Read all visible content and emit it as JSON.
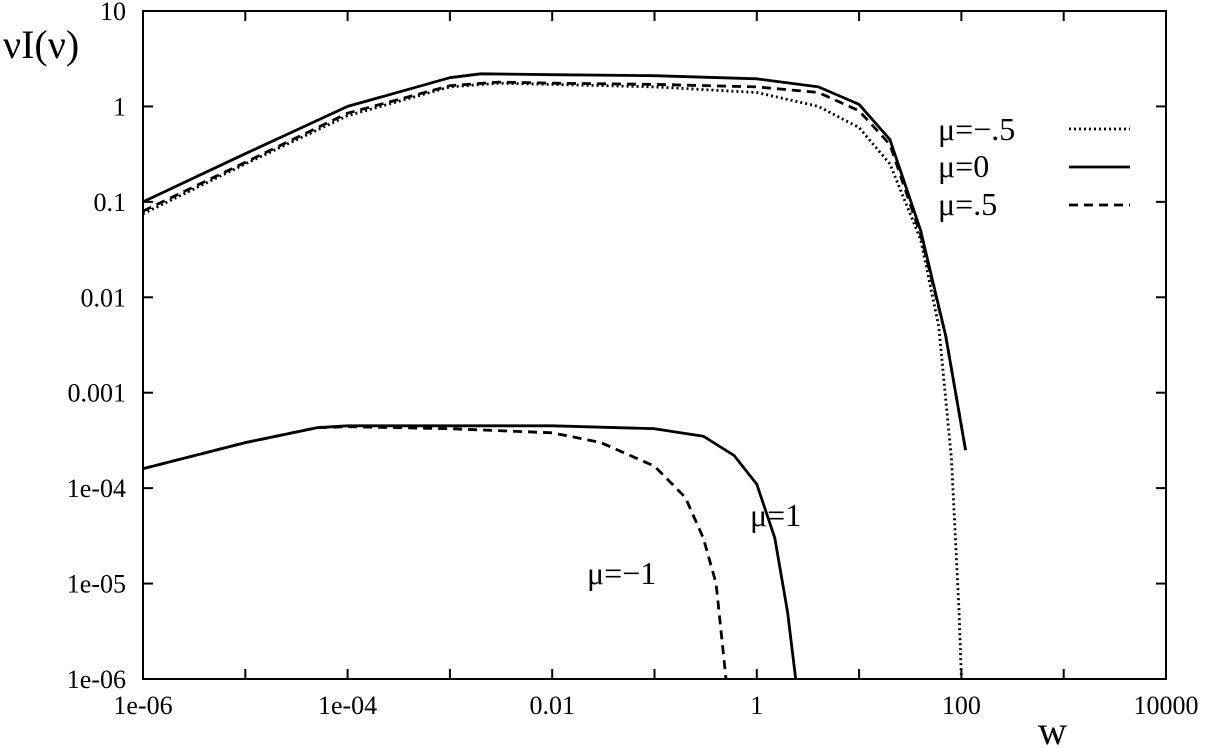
{
  "chart_data": {
    "type": "line",
    "title": "",
    "xlabel": "w",
    "ylabel": "νI(ν)",
    "x_scale": "log",
    "y_scale": "log",
    "xlim": [
      1e-06,
      10000
    ],
    "ylim": [
      1e-06,
      10
    ],
    "grid": false,
    "legend_position": "right",
    "x_tick_labels": [
      "1e-06",
      "1e-04",
      "0.01",
      "1",
      "100",
      "10000"
    ],
    "y_tick_labels": [
      "1e-06",
      "1e-05",
      "1e-04",
      "0.001",
      "0.01",
      "0.1",
      "1",
      "10"
    ],
    "series": [
      {
        "name": "μ=−.5",
        "style": "dotted",
        "points": [
          [
            1e-06,
            0.075
          ],
          [
            1e-05,
            0.25
          ],
          [
            0.0001,
            0.8
          ],
          [
            0.001,
            1.6
          ],
          [
            0.003,
            1.75
          ],
          [
            0.01,
            1.7
          ],
          [
            0.1,
            1.6
          ],
          [
            1,
            1.4
          ],
          [
            4,
            1.0
          ],
          [
            10,
            0.6
          ],
          [
            20,
            0.25
          ],
          [
            40,
            0.04
          ],
          [
            60,
            0.005
          ],
          [
            80,
            0.0002
          ],
          [
            95,
            5e-06
          ],
          [
            100,
            1e-06
          ]
        ]
      },
      {
        "name": "μ=0",
        "style": "solid",
        "points": [
          [
            1e-06,
            0.1
          ],
          [
            1e-05,
            0.32
          ],
          [
            0.0001,
            1.0
          ],
          [
            0.001,
            2.0
          ],
          [
            0.002,
            2.2
          ],
          [
            0.01,
            2.15
          ],
          [
            0.1,
            2.1
          ],
          [
            1,
            1.95
          ],
          [
            4,
            1.6
          ],
          [
            10,
            1.05
          ],
          [
            20,
            0.45
          ],
          [
            40,
            0.05
          ],
          [
            70,
            0.004
          ],
          [
            110,
            0.00025
          ]
        ]
      },
      {
        "name": "μ=.5",
        "style": "dashed",
        "points": [
          [
            1e-06,
            0.08
          ],
          [
            1e-05,
            0.26
          ],
          [
            0.0001,
            0.85
          ],
          [
            0.001,
            1.65
          ],
          [
            0.003,
            1.8
          ],
          [
            0.01,
            1.75
          ],
          [
            0.1,
            1.7
          ],
          [
            1,
            1.6
          ],
          [
            4,
            1.4
          ],
          [
            10,
            0.9
          ],
          [
            20,
            0.4
          ],
          [
            40,
            0.045
          ],
          [
            70,
            0.004
          ],
          [
            110,
            0.00025
          ]
        ]
      },
      {
        "name": "μ=1",
        "style": "solid",
        "points": [
          [
            1e-06,
            0.00016
          ],
          [
            1e-05,
            0.0003
          ],
          [
            5e-05,
            0.00043
          ],
          [
            0.0001,
            0.00045
          ],
          [
            0.001,
            0.00045
          ],
          [
            0.01,
            0.00045
          ],
          [
            0.1,
            0.00042
          ],
          [
            0.3,
            0.00035
          ],
          [
            0.6,
            0.00022
          ],
          [
            1,
            0.00011
          ],
          [
            1.5,
            3e-05
          ],
          [
            2,
            5e-06
          ],
          [
            2.4,
            1e-06
          ]
        ]
      },
      {
        "name": "μ=−1",
        "style": "dashed",
        "points": [
          [
            1e-06,
            0.00016
          ],
          [
            1e-05,
            0.0003
          ],
          [
            5e-05,
            0.00043
          ],
          [
            0.0001,
            0.00044
          ],
          [
            0.001,
            0.00042
          ],
          [
            0.01,
            0.00038
          ],
          [
            0.03,
            0.0003
          ],
          [
            0.1,
            0.00017
          ],
          [
            0.2,
            8e-05
          ],
          [
            0.3,
            3e-05
          ],
          [
            0.4,
            1e-05
          ],
          [
            0.5,
            1e-06
          ]
        ]
      }
    ],
    "legend_entries": [
      "μ=−.5",
      "μ=0",
      "μ=.5"
    ],
    "annotations": [
      "μ=1",
      "μ=−1"
    ]
  }
}
